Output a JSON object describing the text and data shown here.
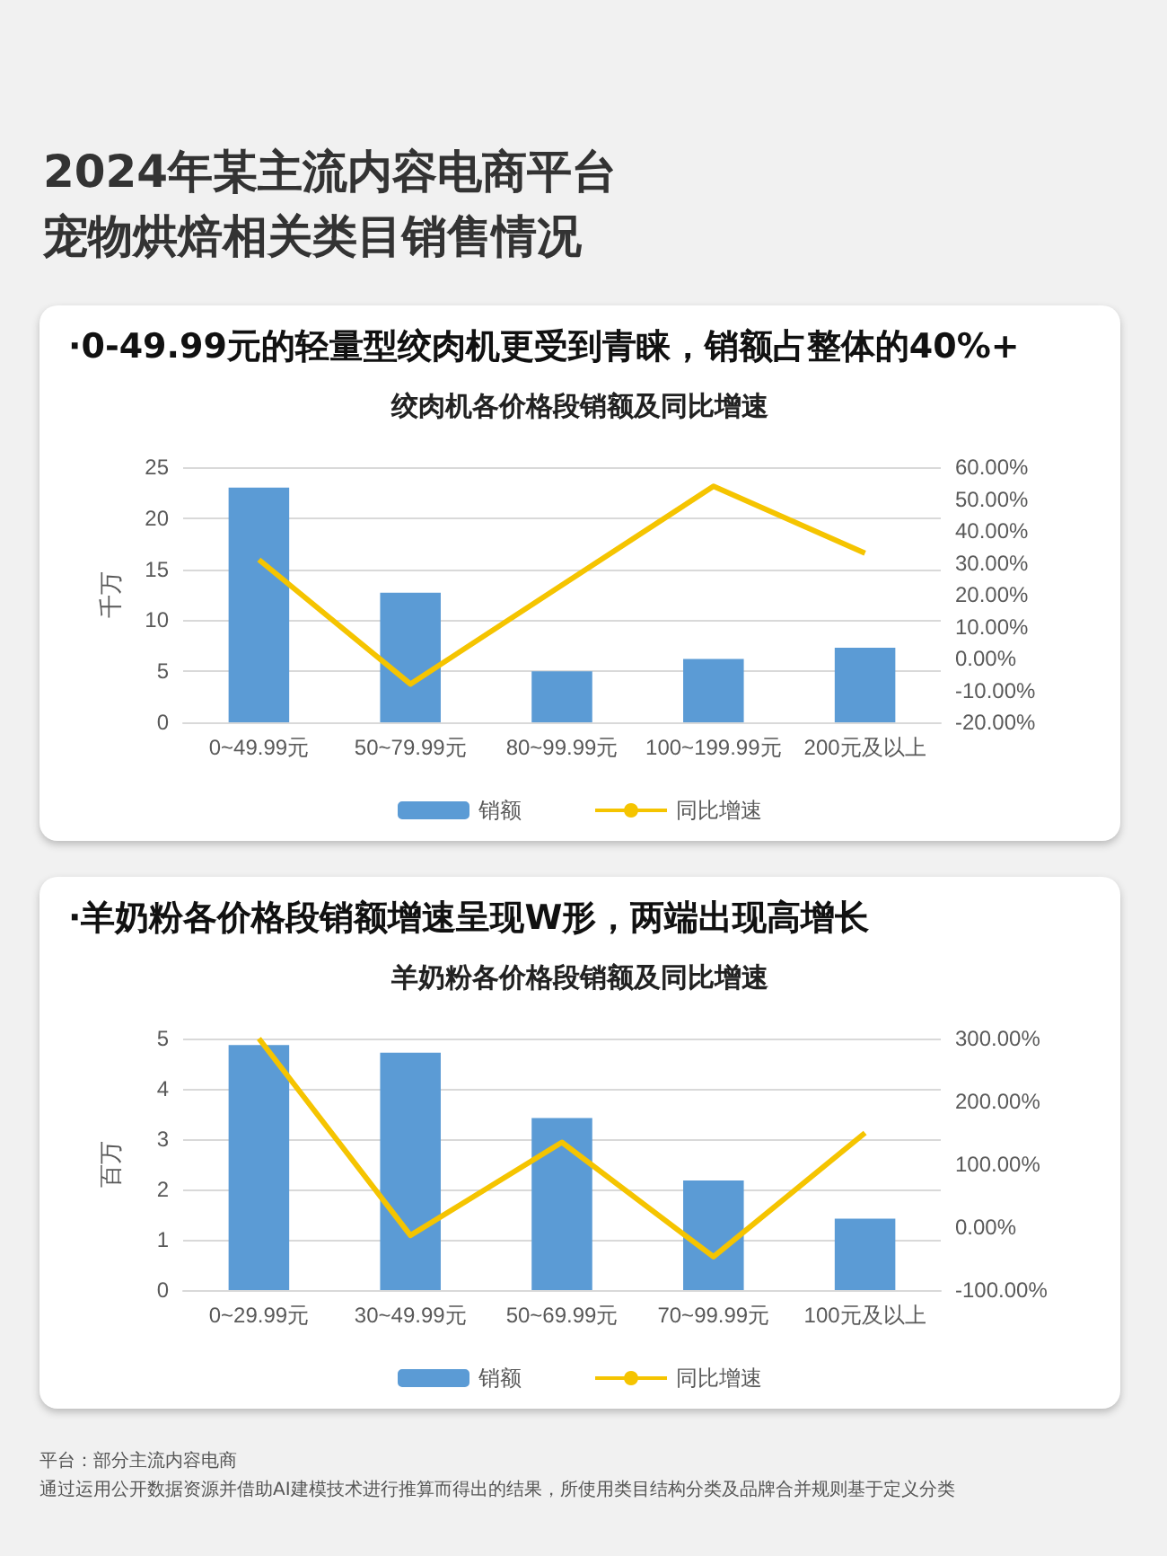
{
  "chart_data": [
    {
      "type": "bar",
      "title": "绞肉机各价格段销额及同比增速",
      "subtitle": "·0-49.99元的轻量型绞肉机更受到青睐，销额占整体的40%+",
      "annotations": [
        "2024年某主流内容电商平台",
        "宠物烘焙相关类目销售情况"
      ],
      "categories": [
        "0~49.99元",
        "50~79.99元",
        "80~99.99元",
        "100~199.99元",
        "200元及以上"
      ],
      "series": [
        {
          "name": "销额",
          "color": "#5b9bd5",
          "values": [
            23,
            12.7,
            5,
            6.2,
            7.3
          ]
        },
        {
          "name": "同比增速",
          "type": "line",
          "axis": "y2",
          "color": "#f5c400",
          "values": [
            31,
            -8,
            23,
            54,
            33
          ]
        }
      ],
      "ylabel": "千万",
      "ylim": [
        0,
        25
      ],
      "yticks": [
        0,
        5,
        10,
        15,
        20,
        25
      ],
      "y2lim": [
        -20,
        60
      ],
      "y2ticks": [
        {
          "value": -20,
          "label": "-20.00%"
        },
        {
          "value": -10,
          "label": "-10.00%"
        },
        {
          "value": 0,
          "label": "0.00%"
        },
        {
          "value": 10,
          "label": "10.00%"
        },
        {
          "value": 20,
          "label": "20.00%"
        },
        {
          "value": 30,
          "label": "30.00%"
        },
        {
          "value": 40,
          "label": "40.00%"
        },
        {
          "value": 50,
          "label": "50.00%"
        },
        {
          "value": 60,
          "label": "60.00%"
        }
      ],
      "grid": "y",
      "legend": "bottom",
      "marker": "none",
      "line_style": "solid"
    },
    {
      "type": "bar",
      "title": "羊奶粉各价格段销额及同比增速",
      "subtitle": "·羊奶粉各价格段销额增速呈现W形，两端出现高增长",
      "annotations": [
        "平台：部分主流内容电商",
        "通过运用公开数据资源并借助AI建模技术进行推算而得出的结果，所使用类目结构分类及品牌合并规则基于定义分类"
      ],
      "categories": [
        "0~29.99元",
        "30~49.99元",
        "50~69.99元",
        "70~99.99元",
        "100元及以上"
      ],
      "series": [
        {
          "name": "销额",
          "color": "#5b9bd5",
          "values": [
            4.87,
            4.72,
            3.42,
            2.18,
            1.42
          ]
        },
        {
          "name": "同比增速",
          "type": "line",
          "axis": "y2",
          "color": "#f5c400",
          "values": [
            300,
            -13,
            135,
            -47,
            150
          ]
        }
      ],
      "ylabel": "百万",
      "ylim": [
        0,
        5
      ],
      "yticks": [
        0,
        1,
        2,
        3,
        4,
        5
      ],
      "y2lim": [
        -100,
        300
      ],
      "y2ticks": [
        {
          "value": -100,
          "label": "-100.00%"
        },
        {
          "value": 0,
          "label": "0.00%"
        },
        {
          "value": 100,
          "label": "100.00%"
        },
        {
          "value": 200,
          "label": "200.00%"
        },
        {
          "value": 300,
          "label": "300.00%"
        }
      ],
      "grid": "y",
      "legend": "bottom",
      "marker": "none",
      "line_style": "solid"
    }
  ]
}
